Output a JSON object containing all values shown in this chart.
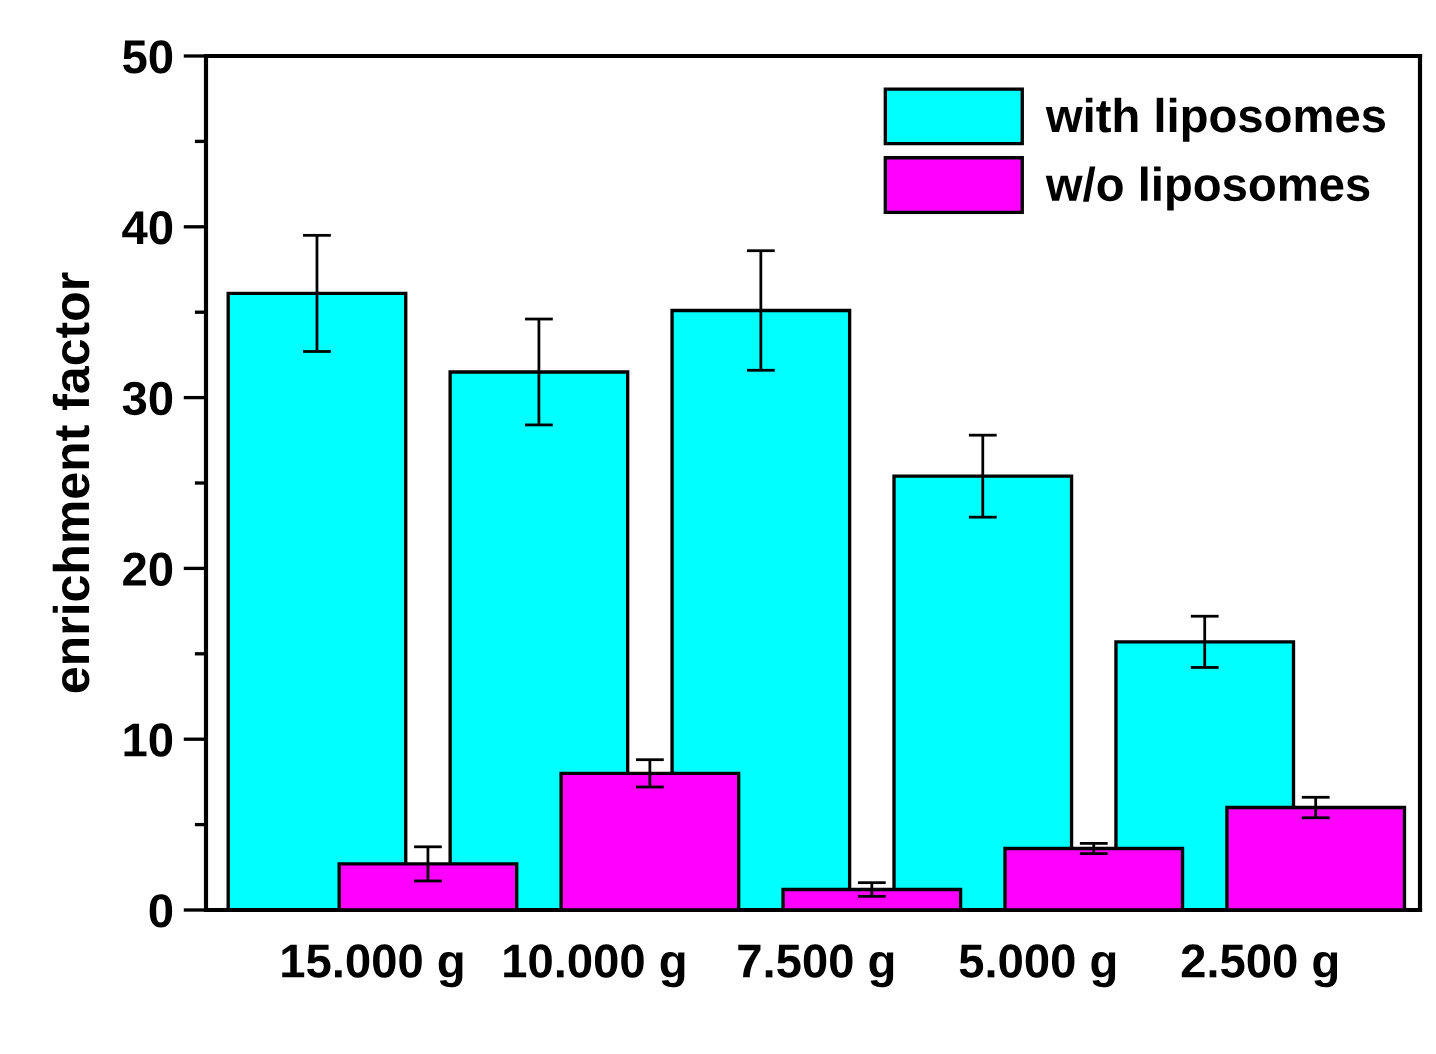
{
  "chart_data": {
    "type": "bar",
    "ylabel": "enrichment factor",
    "categories": [
      "15.000 g",
      "10.000 g",
      "7.500 g",
      "5.000 g",
      "2.500 g"
    ],
    "series": [
      {
        "name": "with liposomes",
        "color": "#00ffff",
        "values": [
          36.1,
          31.5,
          35.1,
          25.4,
          15.7
        ],
        "errors": [
          3.4,
          3.1,
          3.5,
          2.4,
          1.5
        ]
      },
      {
        "name": "w/o liposomes",
        "color": "#ff00ff",
        "values": [
          2.7,
          8.0,
          1.2,
          3.6,
          6.0
        ],
        "errors": [
          1.0,
          0.8,
          0.4,
          0.3,
          0.6
        ]
      }
    ],
    "ylim": [
      0,
      50
    ],
    "yticks": [
      0,
      10,
      20,
      30,
      40,
      50
    ],
    "grid": false,
    "legend": "top right"
  }
}
